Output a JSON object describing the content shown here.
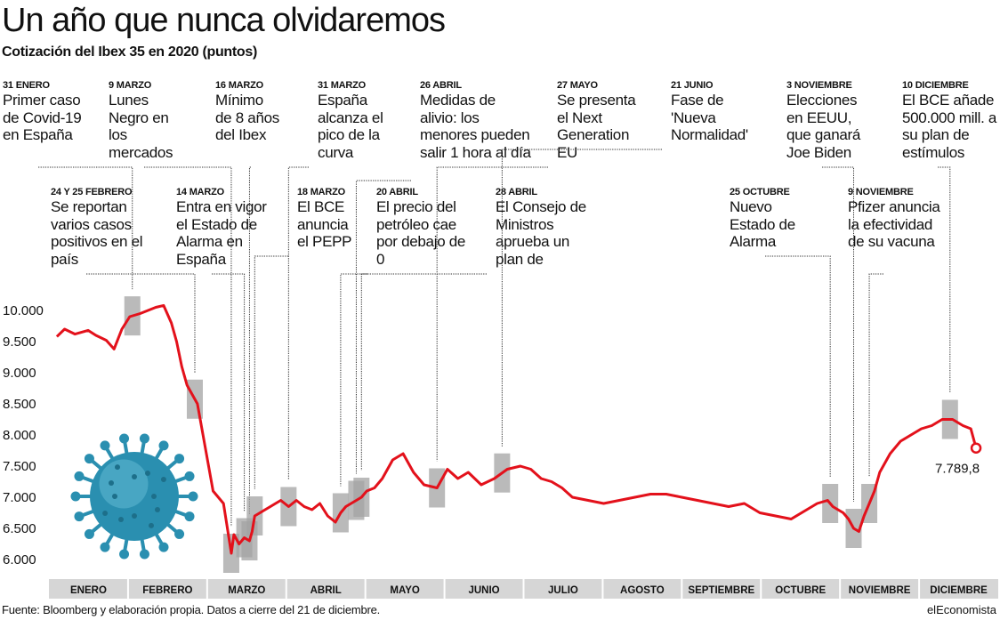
{
  "header": {
    "title": "Un año que nunca olvidaremos",
    "subtitle": "Cotización del Ibex 35 en 2020 (puntos)"
  },
  "annotations": [
    {
      "date": "31 ENERO",
      "text": "Primer caso de Covid-19 en España",
      "x": 31
    },
    {
      "date": "24 Y 25 FEBRERO",
      "text": "Se reportan varios casos positivos en el país",
      "x": 55
    },
    {
      "date": "9 MARZO",
      "text": "Lunes Negro en los mercados",
      "x": 69
    },
    {
      "date": "14 MARZO",
      "text": "Entra en vigor el Estado de Alarma en España",
      "x": 74
    },
    {
      "date": "16 MARZO",
      "text": "Mínimo de 8 años del Ibex",
      "x": 76
    },
    {
      "date": "18 MARZO",
      "text": "El BCE anuncia el PEPP",
      "x": 78
    },
    {
      "date": "31 MARZO",
      "text": "España alcanza el pico de la curva",
      "x": 91
    },
    {
      "date": "20 ABRIL",
      "text": "El precio del petróleo cae por debajo de 0",
      "x": 111
    },
    {
      "date": "26 ABRIL",
      "text": "Medidas de alivio: los menores pueden salir 1 hora al día",
      "x": 117
    },
    {
      "date": "28 ABRIL",
      "text": "El Consejo de Ministros aprueba un plan de",
      "x": 119
    },
    {
      "date": "27 MAYO",
      "text": "Se presenta el Next Generation EU",
      "x": 148
    },
    {
      "date": "21 JUNIO",
      "text": "Fase de 'Nueva Normalidad'",
      "x": 173
    },
    {
      "date": "25 OCTUBRE",
      "text": "Nuevo Estado de Alarma",
      "x": 299
    },
    {
      "date": "3 NOVIEMBRE",
      "text": "Elecciones en EEUU, que ganará Joe Biden",
      "x": 308
    },
    {
      "date": "9  NOVIEMBRE",
      "text": "Pfizer anuncia la efectividad de su vacuna",
      "x": 314
    },
    {
      "date": "10 DICIEMBRE",
      "text": "El BCE añade 500.000 mill. a su plan de estímulos",
      "x": 345
    }
  ],
  "chart_data": {
    "type": "line",
    "title": "Cotización del Ibex 35 en 2020 (puntos)",
    "xlabel": "",
    "ylabel": "",
    "ylim": [
      6000,
      10000
    ],
    "y_ticks": [
      "10.000",
      "9.500",
      "9.000",
      "8.500",
      "8.000",
      "7.500",
      "7.000",
      "6.500",
      "6.000"
    ],
    "y_tick_values": [
      10000,
      9500,
      9000,
      8500,
      8000,
      7500,
      7000,
      6500,
      6000
    ],
    "months": [
      "ENERO",
      "FEBRERO",
      "MARZO",
      "ABRIL",
      "MAYO",
      "JUNIO",
      "JULIO",
      "AGOSTO",
      "SEPTIEMBRE",
      "OCTUBRE",
      "NOVIEMBRE",
      "DICIEMBRE"
    ],
    "series": [
      {
        "color": "#e3111b",
        "x": [
          2,
          5,
          9,
          14,
          17,
          21,
          24,
          27,
          30,
          34,
          37,
          40,
          43,
          46,
          48,
          50,
          52,
          56,
          59,
          62,
          66,
          69,
          70,
          72,
          74,
          76,
          77,
          78,
          80,
          82,
          84,
          86,
          88,
          91,
          94,
          97,
          100,
          103,
          106,
          109,
          111,
          113,
          115,
          117,
          119,
          121,
          124,
          127,
          131,
          135,
          139,
          143,
          148,
          152,
          156,
          160,
          165,
          170,
          175,
          180,
          184,
          188,
          192,
          196,
          200,
          206,
          212,
          218,
          224,
          230,
          236,
          242,
          248,
          254,
          260,
          266,
          272,
          278,
          284,
          290,
          294,
          298,
          300,
          302,
          304,
          306,
          308,
          310,
          312,
          314,
          316,
          318,
          322,
          326,
          330,
          334,
          338,
          342,
          346,
          350,
          353,
          355
        ],
        "y": [
          9580,
          9700,
          9620,
          9680,
          9600,
          9520,
          9380,
          9700,
          9900,
          9950,
          10000,
          10050,
          10080,
          9800,
          9500,
          9100,
          8800,
          8500,
          7800,
          7100,
          6900,
          6100,
          6400,
          6250,
          6350,
          6300,
          6450,
          6700,
          6750,
          6800,
          6850,
          6900,
          6950,
          6850,
          6950,
          6850,
          6800,
          6900,
          6700,
          6600,
          6750,
          6850,
          6900,
          6950,
          7000,
          7100,
          7150,
          7300,
          7600,
          7700,
          7400,
          7200,
          7150,
          7450,
          7300,
          7400,
          7200,
          7300,
          7450,
          7500,
          7450,
          7300,
          7250,
          7150,
          7000,
          6950,
          6900,
          6950,
          7000,
          7050,
          7050,
          7000,
          6950,
          6900,
          6850,
          6900,
          6750,
          6700,
          6650,
          6800,
          6900,
          6950,
          6850,
          6800,
          6750,
          6650,
          6500,
          6450,
          6700,
          6900,
          7100,
          7400,
          7700,
          7900,
          8000,
          8100,
          8150,
          8250,
          8250,
          8150,
          8100,
          7790
        ]
      }
    ],
    "end_label": "7.789,8",
    "grid": false
  },
  "footer": {
    "source": "Fuente: Bloomberg y elaboración propia. Datos a cierre del 21 de diciembre.",
    "brand": "elEconomista"
  },
  "colors": {
    "line": "#e3111b",
    "marker_boxes": "#a3a3a3",
    "month_band": "#d6d6d6",
    "virus": "#2a8fb0"
  },
  "icons": [
    "coronavirus-icon"
  ]
}
